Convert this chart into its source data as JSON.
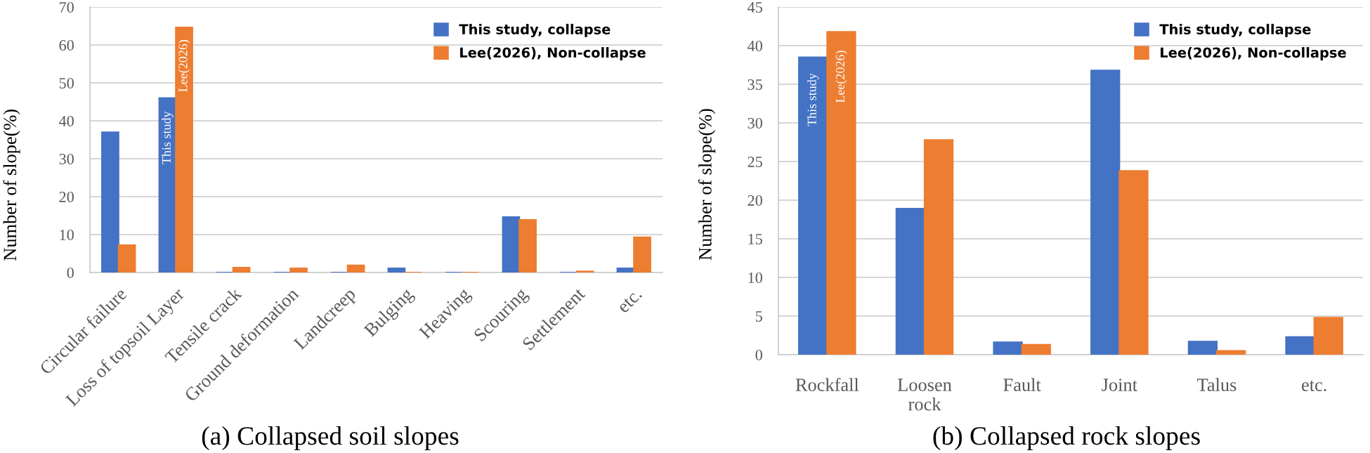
{
  "chart_data": [
    {
      "type": "bar",
      "title": "(a) Collapsed soil slopes",
      "ylabel": "Number of slope(%)",
      "categories": [
        "Circular failure",
        "Loss of topsoil Layer",
        "Tensile crack",
        "Ground deformation",
        "Landcreep",
        "Bulging",
        "Heaving",
        "Scouring",
        "Settlement",
        "etc."
      ],
      "series": [
        {
          "name": "This study, collapse",
          "color": "#4472c4",
          "values": [
            37,
            46,
            0,
            0,
            0,
            1.1,
            0,
            14.6,
            0,
            1.1
          ]
        },
        {
          "name": "Lee(2026), Non-collapse",
          "color": "#ed7d31",
          "values": [
            7.2,
            64.6,
            1.3,
            1.1,
            1.9,
            0,
            0,
            13.9,
            0.3,
            9.3
          ]
        }
      ],
      "ylim": [
        0,
        70
      ],
      "yticks": [
        0,
        10,
        20,
        30,
        40,
        50,
        60,
        70
      ],
      "grid": "y",
      "legend": "top right",
      "annotations": [
        {
          "text": "This study",
          "x": "Loss of topsoil Layer",
          "y": 35.5
        },
        {
          "text": "Lee(2026)",
          "x": "Loss of topsoil Layer",
          "y": 54.5
        }
      ]
    },
    {
      "type": "bar",
      "title": "(b) Collapsed rock slopes",
      "ylabel": "Number of slope(%)",
      "categories": [
        "Rockfall",
        "Loosen\nrock",
        "Fault",
        "Joint",
        "Talus",
        "etc."
      ],
      "series": [
        {
          "name": "This study, collapse",
          "color": "#4472c4",
          "values": [
            38.5,
            18.9,
            1.6,
            36.8,
            1.7,
            2.3
          ]
        },
        {
          "name": "Lee(2026), Non-collapse",
          "color": "#ed7d31",
          "values": [
            41.8,
            27.8,
            1.3,
            23.8,
            0.5,
            4.8
          ]
        }
      ],
      "ylim": [
        0,
        45
      ],
      "yticks": [
        0,
        5,
        10,
        15,
        20,
        25,
        30,
        35,
        40,
        45
      ],
      "grid": "y",
      "legend": "top right",
      "annotations": [
        {
          "text": "This study",
          "x": "Rockfall",
          "y": 33
        },
        {
          "text": "Lee(2026)",
          "x": "Rockfall",
          "y": 36
        }
      ]
    }
  ]
}
